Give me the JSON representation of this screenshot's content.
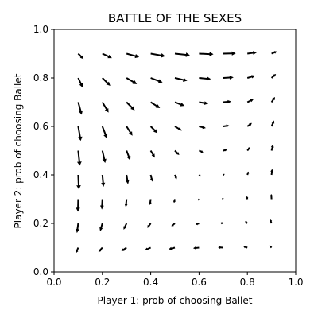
{
  "chart_data": {
    "type": "quiver",
    "title": "BATTLE OF THE SEXES",
    "xlabel": "Player 1: prob of choosing Ballet",
    "ylabel": "Player 2: prob of choosing Ballet",
    "xlim": [
      0,
      1
    ],
    "ylim": [
      0,
      1
    ],
    "xticks": [
      "0.0",
      "0.2",
      "0.4",
      "0.6",
      "0.8",
      "1.0"
    ],
    "yticks": [
      "0.0",
      "0.2",
      "0.4",
      "0.6",
      "0.8",
      "1.0"
    ],
    "grid": false,
    "vector_field": "replicator dynamics, payoffs P1: (B,B)=2, (S,S)=1; P2: (B,B)=1, (S,S)=2",
    "x": [
      0.1,
      0.2,
      0.3,
      0.4,
      0.5,
      0.6,
      0.7,
      0.8,
      0.9
    ],
    "y": [
      0.1,
      0.2,
      0.3,
      0.4,
      0.5,
      0.6,
      0.7,
      0.8,
      0.9
    ]
  }
}
